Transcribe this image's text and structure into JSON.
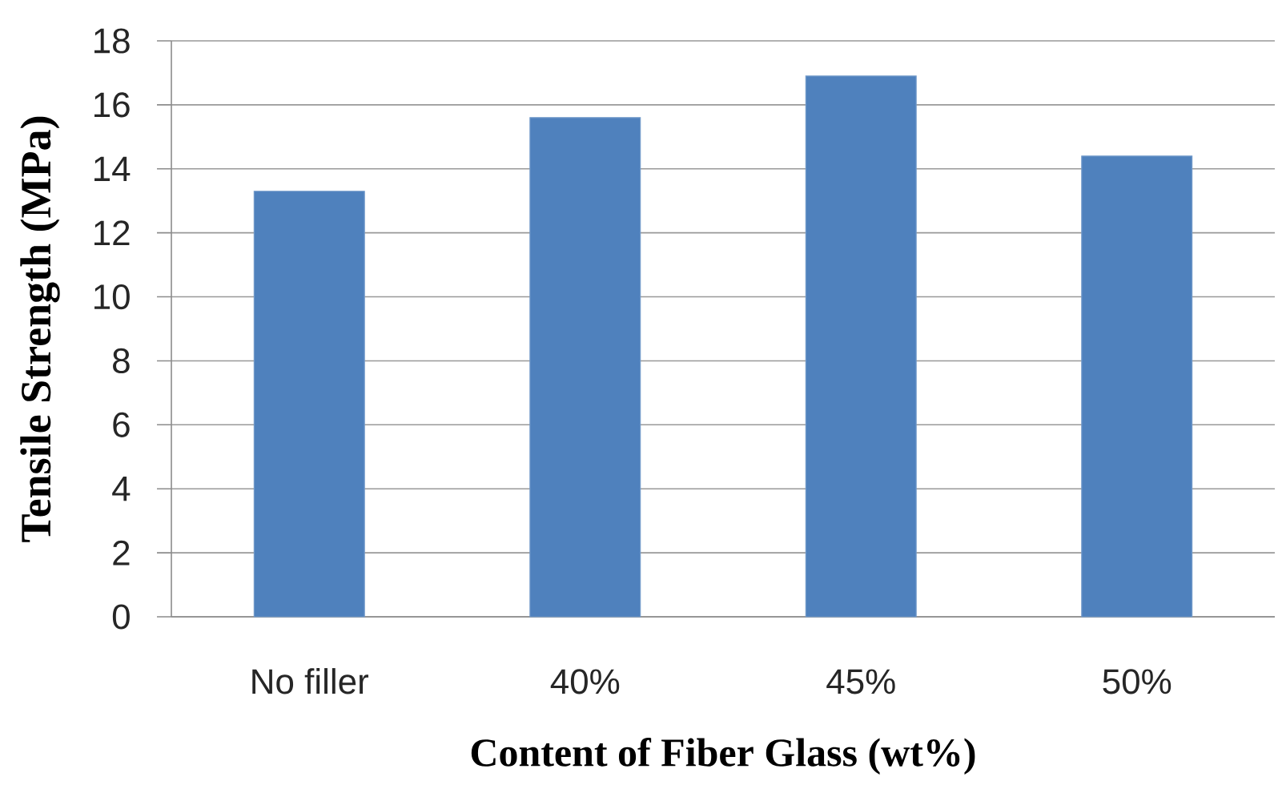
{
  "chart_data": {
    "type": "bar",
    "xlabel": "Content of Fiber Glass (wt%)",
    "ylabel": "Tensile Strength (MPa)",
    "categories": [
      "No filler",
      "40%",
      "45%",
      "50%"
    ],
    "values": [
      13.3,
      15.6,
      16.9,
      14.4
    ],
    "color": "#4f81bd",
    "ylim": [
      0,
      18
    ],
    "yticks": [
      0,
      2,
      4,
      6,
      8,
      10,
      12,
      14,
      16,
      18
    ],
    "grid": "y"
  }
}
